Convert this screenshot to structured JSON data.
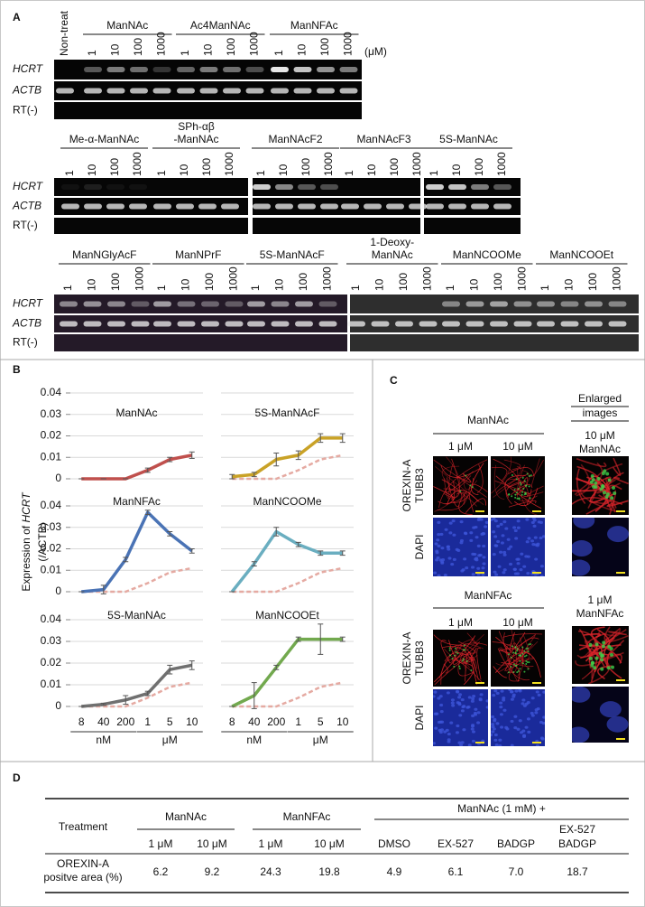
{
  "panel_a": {
    "label": "A",
    "non_treat": "Non-treat",
    "unit": "(μM)",
    "concentrations": [
      "1",
      "10",
      "100",
      "1000"
    ],
    "rows": [
      "HCRT",
      "ACTB",
      "RT(-)"
    ],
    "blots": [
      [
        [
          "ManNAc"
        ],
        [
          "Ac4ManNAc"
        ],
        [
          "ManNFAc"
        ]
      ],
      [
        [
          "Me-α-ManNAc"
        ],
        [
          "SPh-αβ",
          "-ManNAc"
        ],
        [
          "ManNAcF2"
        ],
        [
          "ManNAcF3"
        ],
        [
          "5S-ManNAc"
        ]
      ],
      [
        [
          "ManNGlyAcF"
        ],
        [
          "ManNPrF"
        ],
        [
          "5S-ManNAcF"
        ],
        [
          "1-Deoxy-",
          "ManNAc"
        ],
        [
          "ManNCOOMe"
        ],
        [
          "ManNCOOEt"
        ]
      ]
    ]
  },
  "panel_b": {
    "label": "B",
    "ylabel": [
      "Expression of ",
      "HCRT",
      "(/ACTB)"
    ]
  },
  "chart_data": [
    {
      "type": "line",
      "title": "ManNAc",
      "color": "#c0504d",
      "values": [
        0,
        0,
        0,
        0.004,
        0.009,
        0.011
      ],
      "errors": [
        0,
        0,
        0,
        0.001,
        0.001,
        0.0015
      ],
      "ylim": [
        0,
        0.04
      ],
      "yticks": [
        0,
        0.01,
        0.02,
        0.03,
        0.04
      ],
      "ytick_labels": true,
      "grid": true,
      "dashed_reference": false
    },
    {
      "type": "line",
      "title": "5S-ManNAcF",
      "color": "#c9a227",
      "values": [
        0.001,
        0.002,
        0.009,
        0.011,
        0.019,
        0.019
      ],
      "errors": [
        0.001,
        0.001,
        0.003,
        0.002,
        0.002,
        0.002
      ],
      "ylim": [
        0,
        0.04
      ],
      "yticks": [
        0,
        0.01,
        0.02,
        0.03,
        0.04
      ],
      "ytick_labels": false,
      "grid": true,
      "dashed_reference": true
    },
    {
      "type": "line",
      "title": "ManNFAc",
      "color": "#4a73b5",
      "values": [
        0,
        0.001,
        0.015,
        0.037,
        0.027,
        0.019
      ],
      "errors": [
        0,
        0.002,
        0.001,
        0.001,
        0.001,
        0.001
      ],
      "ylim": [
        0,
        0.04
      ],
      "yticks": [
        0,
        0.01,
        0.02,
        0.03,
        0.04
      ],
      "ytick_labels": true,
      "grid": true,
      "dashed_reference": true
    },
    {
      "type": "line",
      "title": "ManNCOOMe",
      "color": "#6aaec0",
      "values": [
        0,
        0.013,
        0.028,
        0.022,
        0.018,
        0.018
      ],
      "errors": [
        0,
        0.001,
        0.002,
        0.001,
        0.001,
        0.001
      ],
      "ylim": [
        0,
        0.04
      ],
      "yticks": [
        0,
        0.01,
        0.02,
        0.03,
        0.04
      ],
      "ytick_labels": false,
      "grid": true,
      "dashed_reference": true
    },
    {
      "type": "line",
      "title": "5S-ManNAc",
      "color": "#707070",
      "values": [
        0,
        0.001,
        0.003,
        0.006,
        0.017,
        0.019
      ],
      "errors": [
        0,
        0.0005,
        0.002,
        0.001,
        0.002,
        0.002
      ],
      "ylim": [
        0,
        0.04
      ],
      "yticks": [
        0,
        0.01,
        0.02,
        0.03,
        0.04
      ],
      "ytick_labels": true,
      "grid": true,
      "dashed_reference": true,
      "categories": [
        "8",
        "40",
        "200",
        "1",
        "5",
        "10"
      ],
      "x_units": [
        "nM",
        "nM",
        "nM",
        "μM",
        "μM",
        "μM"
      ]
    },
    {
      "type": "line",
      "title": "ManNCOOEt",
      "color": "#72a94e",
      "values": [
        0,
        0.005,
        0.018,
        0.031,
        0.031,
        0.031
      ],
      "errors": [
        0,
        0.006,
        0.001,
        0.001,
        0.007,
        0.001
      ],
      "ylim": [
        0,
        0.04
      ],
      "yticks": [
        0,
        0.01,
        0.02,
        0.03,
        0.04
      ],
      "ytick_labels": false,
      "grid": true,
      "dashed_reference": true,
      "categories": [
        "8",
        "40",
        "200",
        "1",
        "5",
        "10"
      ],
      "x_units": [
        "nM",
        "nM",
        "nM",
        "μM",
        "μM",
        "μM"
      ]
    }
  ],
  "panel_c": {
    "label": "C",
    "enlarged": [
      "Enlarged",
      "images"
    ],
    "stains": [
      "OREXIN-A",
      "TUBB3",
      "DAPI"
    ],
    "blocks": [
      {
        "compound": "ManNAc",
        "doses": [
          "1 μM",
          "10 μM"
        ],
        "enlarged_label": [
          "10 μM",
          "ManNAc"
        ]
      },
      {
        "compound": "ManNFAc",
        "doses": [
          "1 μM",
          "10 μM"
        ],
        "enlarged_label": [
          "1 μM",
          "ManNFAc"
        ]
      }
    ]
  },
  "panel_d": {
    "label": "D",
    "treatment": "Treatment",
    "groups": [
      {
        "name": "ManNAc",
        "columns": [
          [
            "1 μM"
          ],
          [
            "10 μM"
          ]
        ]
      },
      {
        "name": "ManNFAc",
        "columns": [
          [
            "1 μM"
          ],
          [
            "10 μM"
          ]
        ]
      },
      {
        "name": "ManNAc (1 mM) +",
        "columns": [
          [
            "DMSO"
          ],
          [
            "EX-527"
          ],
          [
            "BADGP"
          ],
          [
            "EX-527",
            "BADGP"
          ]
        ]
      }
    ],
    "row_label": [
      "OREXIN-A",
      "positve area (%)"
    ],
    "values": [
      "6.2",
      "9.2",
      "24.3",
      "19.8",
      "4.9",
      "6.1",
      "7.0",
      "18.7"
    ]
  }
}
